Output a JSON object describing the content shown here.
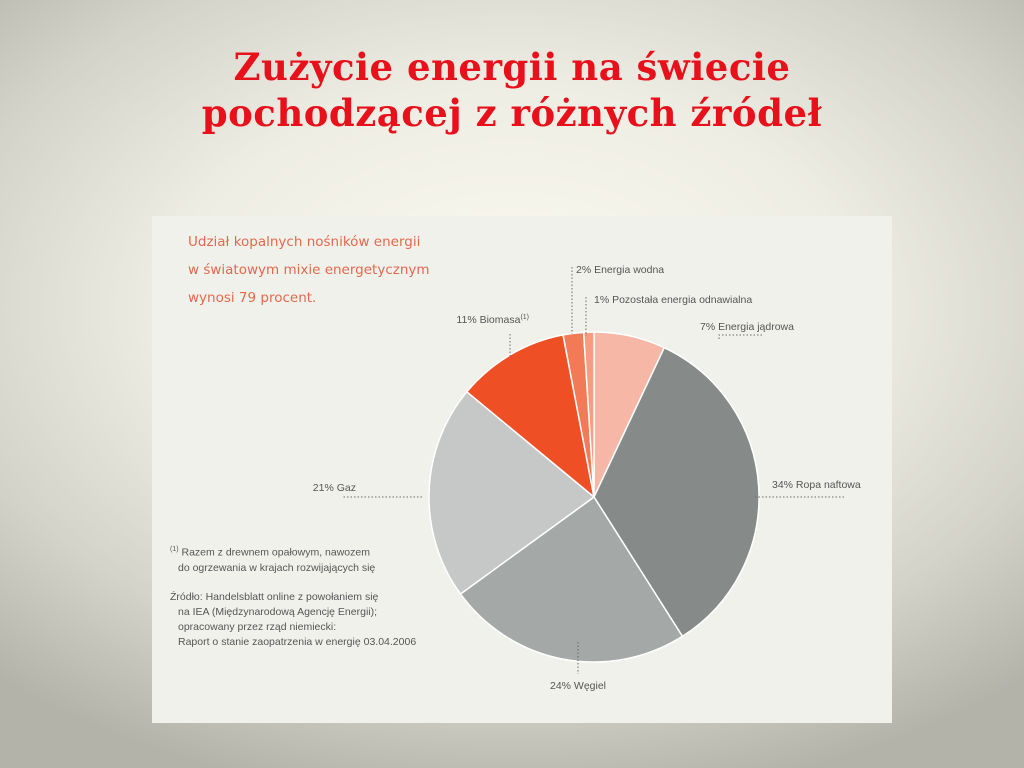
{
  "title": {
    "line1": "Zużycie energii na świecie",
    "line2": "pochodzącej z różnych źródeł"
  },
  "intro": {
    "line1": "Udział kopalnych nośników energii",
    "line2": "w światowym mixie  energetycznym",
    "line3": "wynosi 79 procent."
  },
  "footnote": {
    "marker": "(1)",
    "line1": "Razem z drewnem opałowym, nawozem",
    "line2": "do ogrzewania w krajach rozwijających się"
  },
  "source": {
    "line1": "Źródło: Handelsblatt online z powołaniem się",
    "line2": "na IEA (Międzynarodową Agencję Energii);",
    "line3": "opracowany przez rząd niemiecki:",
    "line4": "Raport o stanie zaopatrzenia w energię 03.04.2006"
  },
  "chart_data": {
    "type": "pie",
    "unit": "%",
    "slices": [
      {
        "label": "7% Energia jądrowa",
        "value": 7,
        "color": "#f7b7a6"
      },
      {
        "label": "34% Ropa naftowa",
        "value": 34,
        "color": "#868b8a"
      },
      {
        "label": "24% Węgiel",
        "value": 24,
        "color": "#a4a8a7"
      },
      {
        "label": "21% Gaz",
        "value": 21,
        "color": "#c5c8c6"
      },
      {
        "label": "11% Biomasa",
        "label_sup": "(1)",
        "value": 11,
        "color": "#ef4f25"
      },
      {
        "label": "2% Energia wodna",
        "value": 2,
        "color": "#f27a56"
      },
      {
        "label": "1% Pozostała energia odnawialna",
        "value": 1,
        "color": "#f69c80"
      }
    ]
  }
}
